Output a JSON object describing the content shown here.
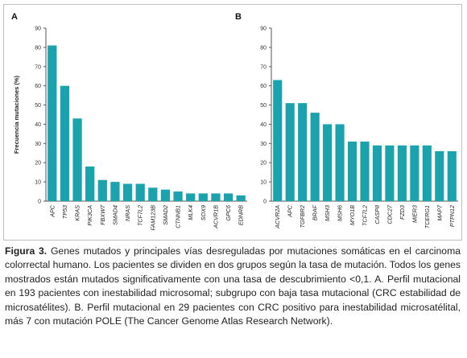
{
  "colors": {
    "bar": "#1aa3ad",
    "axis": "#555555",
    "grid": "#d9d9d9"
  },
  "chart_data": [
    {
      "type": "bar",
      "panel_label": "A",
      "ylabel": "Frecuencia mutaciones (%)",
      "ylim": [
        0,
        90
      ],
      "yticks": [
        0,
        10,
        20,
        30,
        40,
        50,
        60,
        70,
        80,
        90
      ],
      "grid": false,
      "categories": [
        "APC",
        "TP53",
        "KRAS",
        "PIK3CA",
        "FBXW7",
        "SMAD4",
        "NRAS",
        "TCF7L2",
        "FAM123B",
        "SMAD2",
        "CTNNB1",
        "MLK4",
        "SOX9",
        "ACVR1B",
        "GPC6",
        "EDNRB"
      ],
      "values": [
        81,
        60,
        43,
        18,
        11,
        10,
        9,
        9,
        7,
        6,
        5,
        4,
        4,
        4,
        4,
        3
      ]
    },
    {
      "type": "bar",
      "panel_label": "B",
      "ylabel": "",
      "ylim": [
        0,
        90
      ],
      "yticks": [
        0,
        10,
        20,
        30,
        40,
        50,
        60,
        70,
        80,
        90
      ],
      "grid": false,
      "categories": [
        "ACVR2A",
        "APC",
        "TGFBR2",
        "BRAF",
        "MSH3",
        "MSH6",
        "MYO1B",
        "TCF7L2",
        "CASP8",
        "CDC27",
        "FZD3",
        "MIER3",
        "TCERG1",
        "MAP7",
        "PTPN12"
      ],
      "values": [
        63,
        51,
        51,
        46,
        40,
        40,
        31,
        31,
        29,
        29,
        29,
        29,
        29,
        26,
        26
      ]
    }
  ],
  "caption": {
    "label": "Figura 3.",
    "text": " Genes mutados y principales vías desreguladas por mutaciones somáticas en el carcinoma colorrectal humano. Los pacientes se dividen en dos grupos según la tasa de mutación. Todos los genes mostrados están mutados significativamente con una tasa de descubrimiento <0,1. A. Perfil mutacional en 193 pacientes con inestabilidad microsomal; subgrupo con baja tasa mutacional (CRC estabilidad de microsatélites). B. Perfil mutacional en 29 pacientes con CRC positivo para inestabilidad microsatélital, más 7 con mutación POLE (The Cancer Genome Atlas Research Network)."
  }
}
